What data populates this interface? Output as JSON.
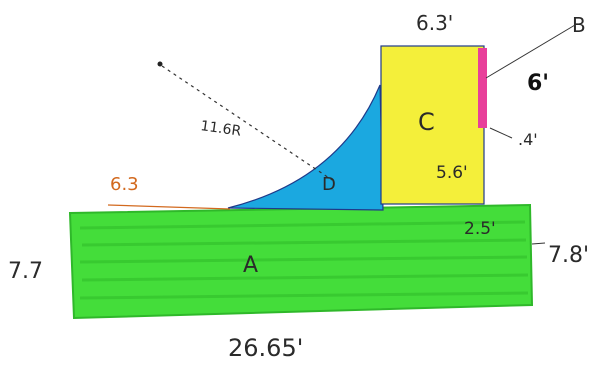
{
  "diagram": {
    "regions": [
      {
        "id": "A",
        "label": "A",
        "color": "#44dd3a"
      },
      {
        "id": "B",
        "label": "B",
        "color": "#e8409a"
      },
      {
        "id": "C",
        "label": "C",
        "color": "#f4ef3a"
      },
      {
        "id": "D",
        "label": "D",
        "color": "#1ba8e0"
      }
    ],
    "dimensions": {
      "top_c": "6.3'",
      "b_width": "6'",
      "b_depth": ".4'",
      "c_height": "5.6'",
      "radius": "11.6R",
      "d_run": "6.3",
      "left_side": "7.7",
      "right_side": "7.8'",
      "step": "2.5'",
      "bottom": "26.65'"
    },
    "colors": {
      "outline": "#1f3a8a",
      "ink": "#2a2a2a",
      "accent_line": "#d2691e"
    }
  }
}
